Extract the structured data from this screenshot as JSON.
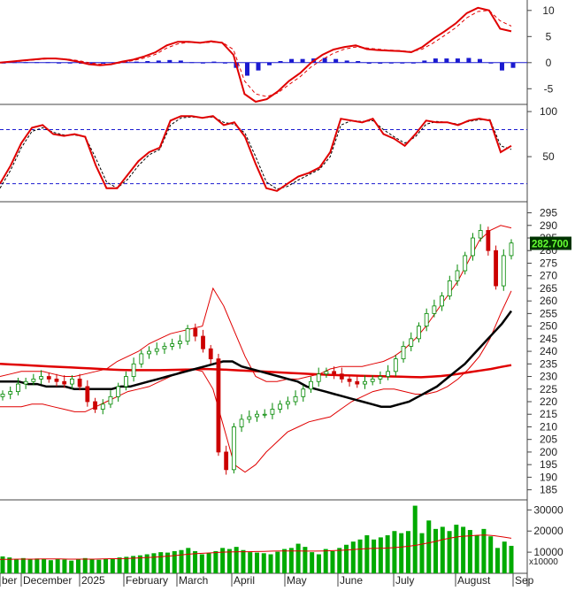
{
  "chart_data": [
    {
      "panel": "macd",
      "type": "line+bar",
      "y_ticks": [
        -5,
        0,
        5,
        10
      ],
      "y_tick_labels": [
        "-5",
        "0",
        "5",
        "10"
      ],
      "ylim": [
        -8,
        12
      ],
      "series": [
        {
          "role": "macd-line",
          "color": "#e00000",
          "values": [
            0.0,
            0.2,
            0.4,
            0.6,
            0.8,
            0.8,
            0.6,
            0.2,
            -0.3,
            -0.5,
            -0.3,
            0.2,
            0.6,
            1.2,
            2.0,
            3.3,
            4.0,
            4.0,
            3.8,
            4.1,
            3.8,
            1.5,
            -6.0,
            -7.5,
            -7.0,
            -5.5,
            -3.5,
            -2.0,
            0.0,
            1.5,
            2.5,
            3.0,
            3.3,
            2.6,
            2.4,
            2.3,
            2.2,
            2.0,
            3.0,
            4.6,
            6.0,
            7.5,
            9.5,
            10.5,
            10.0,
            6.5,
            6.0
          ]
        },
        {
          "role": "signal-line",
          "color": "#e00000",
          "values": [
            0.0,
            0.1,
            0.3,
            0.5,
            0.7,
            0.8,
            0.7,
            0.4,
            0.0,
            -0.3,
            -0.3,
            0.0,
            0.4,
            0.9,
            1.6,
            2.8,
            3.6,
            3.9,
            3.8,
            3.9,
            3.9,
            2.5,
            -3.5,
            -6.0,
            -6.5,
            -5.8,
            -4.2,
            -2.7,
            -0.8,
            0.6,
            1.8,
            2.6,
            3.0,
            2.8,
            2.6,
            2.4,
            2.3,
            2.1,
            2.6,
            3.8,
            5.2,
            6.7,
            8.6,
            9.8,
            10.0,
            8.0,
            7.0
          ]
        },
        {
          "role": "histogram",
          "color": "#1a1ad0",
          "values": [
            0.0,
            0.1,
            0.1,
            0.1,
            0.1,
            0.0,
            -0.1,
            -0.2,
            -0.3,
            -0.2,
            0.0,
            0.2,
            0.2,
            0.3,
            0.4,
            0.5,
            0.4,
            0.1,
            0.0,
            0.2,
            -0.1,
            -1.0,
            -2.5,
            -1.5,
            -0.5,
            0.3,
            0.7,
            0.7,
            0.8,
            0.9,
            0.7,
            0.4,
            0.3,
            -0.2,
            -0.2,
            -0.1,
            -0.1,
            -0.1,
            0.4,
            0.8,
            0.8,
            0.8,
            0.9,
            0.7,
            0.0,
            -1.5,
            -1.0
          ]
        }
      ]
    },
    {
      "panel": "stochastic",
      "type": "line",
      "y_ticks": [
        50,
        100
      ],
      "y_tick_labels": [
        "50",
        "100"
      ],
      "ylim": [
        0,
        105
      ],
      "reference_lines": [
        80,
        20
      ],
      "series": [
        {
          "role": "k-line",
          "color": "#e00000",
          "values": [
            20,
            40,
            65,
            82,
            85,
            75,
            73,
            75,
            72,
            40,
            15,
            15,
            30,
            45,
            55,
            60,
            90,
            95,
            95,
            93,
            95,
            85,
            88,
            72,
            42,
            15,
            12,
            20,
            28,
            32,
            38,
            55,
            92,
            90,
            88,
            92,
            75,
            70,
            62,
            75,
            90,
            88,
            88,
            85,
            90,
            92,
            90,
            55,
            62
          ]
        },
        {
          "role": "d-line",
          "color": "#000000",
          "values": [
            15,
            35,
            60,
            78,
            82,
            77,
            74,
            74,
            72,
            48,
            22,
            15,
            25,
            40,
            52,
            58,
            85,
            93,
            94,
            93,
            94,
            88,
            86,
            76,
            50,
            22,
            14,
            17,
            24,
            30,
            36,
            50,
            85,
            90,
            89,
            90,
            80,
            72,
            65,
            72,
            86,
            89,
            88,
            86,
            89,
            91,
            91,
            62,
            58
          ]
        }
      ]
    },
    {
      "panel": "price",
      "type": "candlestick",
      "y_ticks": [
        185,
        190,
        195,
        200,
        205,
        210,
        215,
        220,
        225,
        230,
        235,
        240,
        245,
        250,
        255,
        260,
        265,
        270,
        275,
        280,
        285,
        290,
        295
      ],
      "ylim": [
        181,
        298
      ],
      "last_price": "282.700",
      "x_labels": [
        "ber",
        "December",
        "2025",
        "February",
        "March",
        "April",
        "May",
        "June",
        "July",
        "August",
        "Sep"
      ],
      "x_label_dates": [
        "2024-11",
        "2024-12",
        "2025-01",
        "2025-02",
        "2025-03",
        "2025-04",
        "2025-05",
        "2025-06",
        "2025-07",
        "2025-08",
        "2025-09"
      ],
      "closes": [
        223,
        224,
        227,
        228,
        229,
        230,
        229,
        228,
        227,
        229,
        226,
        220,
        217,
        219,
        222,
        226,
        230,
        235,
        239,
        240,
        241,
        242,
        243,
        244,
        249,
        246,
        241,
        237,
        200,
        193,
        210,
        213,
        214,
        215,
        215,
        217,
        219,
        220,
        222,
        225,
        228,
        231,
        232,
        231,
        229,
        228,
        227,
        228,
        229,
        230,
        232,
        237,
        242,
        245,
        250,
        255,
        258,
        262,
        268,
        272,
        278,
        285,
        288,
        280,
        266,
        278,
        283
      ],
      "sma_short": [
        228,
        228,
        228,
        227,
        227,
        226,
        226,
        226,
        225,
        225,
        225,
        225,
        225,
        226,
        226,
        227,
        228,
        229,
        230,
        231,
        232,
        233,
        234,
        235,
        236,
        236,
        234,
        233,
        232,
        231,
        230,
        229,
        228,
        226,
        225,
        224,
        223,
        222,
        221,
        220,
        219,
        218,
        218,
        219,
        220,
        222,
        224,
        226,
        229,
        232,
        235,
        239,
        243,
        247,
        251,
        256
      ],
      "sma_long": [
        235,
        234.8,
        234.6,
        234.4,
        234.2,
        234,
        233.8,
        233.6,
        233.4,
        233.2,
        233,
        232.8,
        232.6,
        232.5,
        232.5,
        232.5,
        232.5,
        232.6,
        232.7,
        232.8,
        233,
        232.9,
        232.8,
        232.6,
        232.4,
        232.2,
        232,
        231.8,
        231.6,
        231.4,
        231.2,
        231,
        230.8,
        230.6,
        230.5,
        230.4,
        230.3,
        230.2,
        230.1,
        230,
        229.9,
        229.8,
        229.7,
        229.9,
        230.2,
        230.6,
        231.2,
        231.8,
        232.4,
        233,
        233.8,
        234.5
      ],
      "bb_upper": [
        230,
        231,
        232,
        232,
        232,
        231,
        230,
        230,
        231,
        232,
        233,
        236,
        238,
        240,
        243,
        245,
        247,
        248,
        249,
        250,
        265,
        258,
        248,
        238,
        230,
        228,
        228,
        229,
        229,
        230,
        231,
        233,
        234,
        234,
        234,
        235,
        236,
        238,
        241,
        245,
        250,
        256,
        262,
        268,
        276,
        284,
        288,
        290,
        289
      ],
      "bb_lower": [
        218,
        218,
        218,
        219,
        219,
        218,
        217,
        216,
        216,
        218,
        220,
        222,
        224,
        225,
        226,
        228,
        230,
        232,
        233,
        232,
        225,
        210,
        195,
        192,
        195,
        200,
        204,
        208,
        210,
        212,
        213,
        214,
        217,
        220,
        222,
        224,
        225,
        225,
        224,
        223,
        223,
        224,
        226,
        229,
        233,
        238,
        245,
        255,
        264
      ]
    },
    {
      "panel": "volume",
      "type": "bar",
      "y_ticks": [
        10000,
        20000,
        30000
      ],
      "y_tick_labels": [
        "10000",
        "20000",
        "30000"
      ],
      "unit_label": "x10000",
      "ylim": [
        0,
        33500
      ],
      "values": [
        8000,
        7500,
        6800,
        7200,
        6500,
        7000,
        6800,
        6200,
        6700,
        6500,
        6000,
        6800,
        7200,
        6700,
        6400,
        6700,
        7000,
        7500,
        7800,
        8200,
        8500,
        9000,
        9500,
        10000,
        9800,
        10500,
        11000,
        12000,
        10500,
        9000,
        9500,
        10500,
        12000,
        11500,
        12500,
        11000,
        10000,
        9800,
        9500,
        9000,
        10200,
        11500,
        12000,
        14000,
        12500,
        10000,
        9000,
        11500,
        10500,
        12000,
        13500,
        15000,
        16000,
        18000,
        16000,
        17000,
        18000,
        20000,
        19000,
        20000,
        32000,
        19000,
        25000,
        21000,
        22000,
        20000,
        23000,
        22000,
        20500,
        18000,
        21000,
        17500,
        12000,
        15000,
        13000
      ],
      "ma_values": [
        6600,
        6600,
        6700,
        6700,
        6700,
        6800,
        6800,
        6800,
        6700,
        6700,
        6700,
        6700,
        6800,
        6900,
        6900,
        7000,
        7200,
        7400,
        7600,
        7900,
        8200,
        8600,
        9000,
        9300,
        9500,
        9700,
        10000,
        10100,
        10200,
        10200,
        10300,
        10400,
        10500,
        10600,
        10600,
        10600,
        10500,
        10500,
        10600,
        10700,
        10900,
        11100,
        11400,
        11700,
        11800,
        11900,
        12100,
        12400,
        12800,
        13400,
        14200,
        15000,
        16000,
        16800,
        17400,
        17700,
        18000,
        18100,
        17800,
        17200,
        16600
      ]
    }
  ]
}
